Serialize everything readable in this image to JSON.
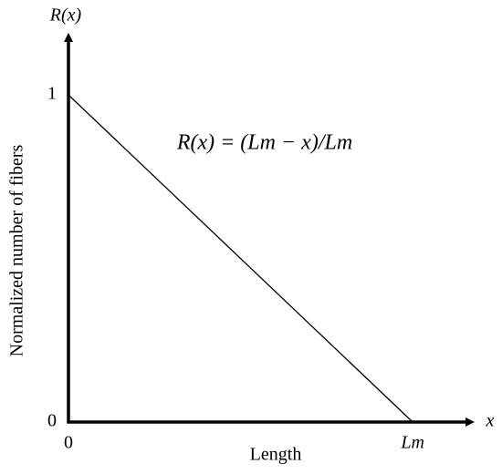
{
  "chart_data": {
    "type": "line",
    "x": [
      0,
      1
    ],
    "series": [
      {
        "name": "R(x)",
        "color": "#000000",
        "values": [
          1,
          0
        ]
      }
    ],
    "xlim": [
      0,
      1.18
    ],
    "ylim": [
      0,
      1.24
    ],
    "xticks": [
      0,
      {
        "value": 1,
        "label": "Lm"
      }
    ],
    "yticks": [
      0,
      1
    ],
    "x_label": "Length",
    "y_label": "Normalized number of fibers",
    "x_axis_symbol": "x",
    "y_axis_symbol": "R(x)",
    "annotation": "R(x) = (Lm − x)/Lm",
    "grid": false
  }
}
